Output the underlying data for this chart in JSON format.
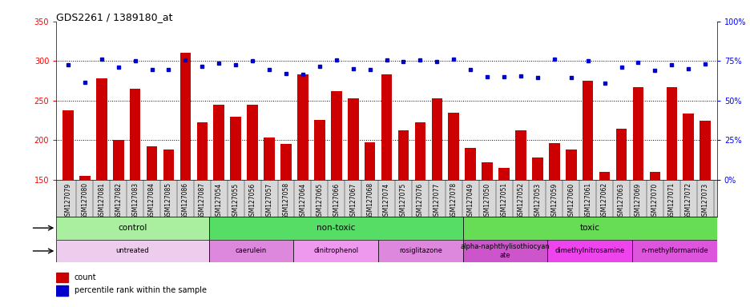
{
  "title": "GDS2261 / 1389180_at",
  "samples": [
    "GSM127079",
    "GSM127080",
    "GSM127081",
    "GSM127082",
    "GSM127083",
    "GSM127084",
    "GSM127085",
    "GSM127086",
    "GSM127087",
    "GSM127054",
    "GSM127055",
    "GSM127056",
    "GSM127057",
    "GSM127058",
    "GSM127064",
    "GSM127065",
    "GSM127066",
    "GSM127067",
    "GSM127068",
    "GSM127074",
    "GSM127075",
    "GSM127076",
    "GSM127077",
    "GSM127078",
    "GSM127049",
    "GSM127050",
    "GSM127051",
    "GSM127052",
    "GSM127053",
    "GSM127059",
    "GSM127060",
    "GSM127061",
    "GSM127062",
    "GSM127063",
    "GSM127069",
    "GSM127070",
    "GSM127071",
    "GSM127072",
    "GSM127073"
  ],
  "bar_values": [
    238,
    155,
    278,
    200,
    265,
    192,
    188,
    310,
    222,
    245,
    230,
    245,
    203,
    195,
    283,
    225,
    262,
    253,
    197,
    283,
    212,
    222,
    253,
    235,
    190,
    172,
    165,
    212,
    178,
    196,
    188,
    275,
    160,
    214,
    267,
    160,
    267,
    234,
    224
  ],
  "dot_values": [
    295,
    273,
    302,
    292,
    300,
    289,
    289,
    301,
    293,
    297,
    295,
    300,
    289,
    284,
    283,
    293,
    301,
    290,
    289,
    301,
    299,
    301,
    299,
    302,
    289,
    280,
    280,
    281,
    279,
    302,
    279,
    300,
    272,
    292,
    298,
    288,
    295,
    290,
    296
  ],
  "ylim_left": [
    150,
    350
  ],
  "ylim_right": [
    0,
    100
  ],
  "yticks_left": [
    150,
    200,
    250,
    300,
    350
  ],
  "yticks_right": [
    0,
    25,
    50,
    75,
    100
  ],
  "bar_color": "#cc0000",
  "dot_color": "#0000cc",
  "plot_bg_color": "#ffffff",
  "tick_label_area_color": "#d8d8d8",
  "groups_other": [
    {
      "label": "control",
      "start": 0,
      "end": 8,
      "color": "#aaeea0"
    },
    {
      "label": "non-toxic",
      "start": 9,
      "end": 23,
      "color": "#55dd66"
    },
    {
      "label": "toxic",
      "start": 24,
      "end": 38,
      "color": "#66dd55"
    }
  ],
  "groups_agent": [
    {
      "label": "untreated",
      "start": 0,
      "end": 8,
      "color": "#eeccee"
    },
    {
      "label": "caerulein",
      "start": 9,
      "end": 13,
      "color": "#dd88dd"
    },
    {
      "label": "dinitrophenol",
      "start": 14,
      "end": 18,
      "color": "#ee99ee"
    },
    {
      "label": "rosiglitazone",
      "start": 19,
      "end": 23,
      "color": "#dd88dd"
    },
    {
      "label": "alpha-naphthylisothiocyan\nate",
      "start": 24,
      "end": 28,
      "color": "#cc55cc"
    },
    {
      "label": "dimethylnitrosamine",
      "start": 29,
      "end": 33,
      "color": "#ee44ee"
    },
    {
      "label": "n-methylformamide",
      "start": 34,
      "end": 38,
      "color": "#dd55dd"
    }
  ],
  "other_colors": [
    "#aaeea0",
    "#55dd66",
    "#66dd55"
  ],
  "agent_colors": [
    "#eeccee",
    "#dd88dd",
    "#ee99ee",
    "#dd88dd",
    "#cc55cc",
    "#ee44ee",
    "#dd55dd"
  ]
}
